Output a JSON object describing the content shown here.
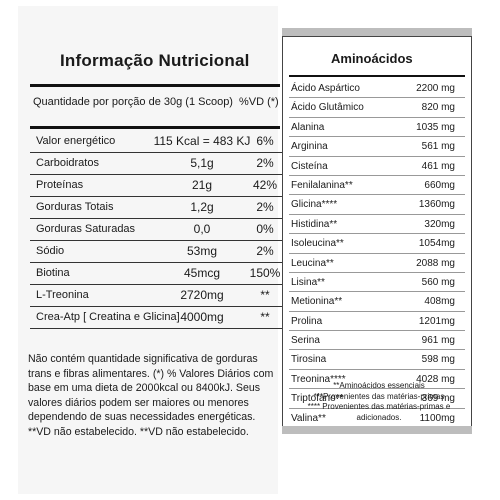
{
  "left": {
    "title": "Informação Nutricional",
    "serving_label": "Quantidade por porção de 30g (1 Scoop)",
    "vd_header": "%VD (*)",
    "rows": [
      {
        "name": "Valor energético",
        "qty": "115 Kcal = 483 KJ",
        "vd": "6%"
      },
      {
        "name": "Carboidratos",
        "qty": "5,1g",
        "vd": "2%"
      },
      {
        "name": "Proteínas",
        "qty": "21g",
        "vd": "42%"
      },
      {
        "name": "Gorduras Totais",
        "qty": "1,2g",
        "vd": "2%"
      },
      {
        "name": "Gorduras Saturadas",
        "qty": "0,0",
        "vd": "0%"
      },
      {
        "name": "Sódio",
        "qty": "53mg",
        "vd": "2%"
      },
      {
        "name": "Biotina",
        "qty": "45mcg",
        "vd": "150%"
      },
      {
        "name": "L-Treonina",
        "qty": "2720mg",
        "vd": "**"
      },
      {
        "name": "Crea-Atp [ Creatina e Glicina]",
        "qty": "4000mg",
        "vd": "**"
      }
    ],
    "footnote": "Não contém quantidade significativa de gorduras trans e fibras alimentares. (*) % Valores Diários com base em uma dieta de 2000kcal ou 8400kJ. Seus valores diários podem ser maiores ou menores dependendo de suas necessidades energéticas. **VD não estabelecido. **VD não estabelecido."
  },
  "right": {
    "title": "Aminoácidos",
    "rows": [
      {
        "name": "Ácido Aspártico",
        "value": "2200 mg"
      },
      {
        "name": "Ácido Glutâmico",
        "value": "820 mg"
      },
      {
        "name": "Alanina",
        "value": "1035 mg"
      },
      {
        "name": "Arginina",
        "value": "561 mg"
      },
      {
        "name": "Cisteína",
        "value": "461 mg"
      },
      {
        "name": "Fenilalanina**",
        "value": "660mg"
      },
      {
        "name": "Glicina****",
        "value": "1360mg"
      },
      {
        "name": "Histidina**",
        "value": "320mg"
      },
      {
        "name": "Isoleucina**",
        "value": "1054mg"
      },
      {
        "name": "Leucina**",
        "value": "2088 mg"
      },
      {
        "name": "Lisina**",
        "value": "560 mg"
      },
      {
        "name": "Metionina**",
        "value": "408mg"
      },
      {
        "name": "Prolina",
        "value": "1201mg"
      },
      {
        "name": "Serina",
        "value": "961 mg"
      },
      {
        "name": "Tirosina",
        "value": "598 mg"
      },
      {
        "name": "Treonina****",
        "value": "4028 mg"
      },
      {
        "name": "Triptofano**",
        "value": "369 mg"
      },
      {
        "name": "Valina**",
        "value": "1100mg"
      }
    ],
    "notes": [
      "**Aminoácidos essenciais",
      "***Provenientes das matérias-primas",
      "**** Provenientes das matérias-primas e adicionados."
    ]
  }
}
